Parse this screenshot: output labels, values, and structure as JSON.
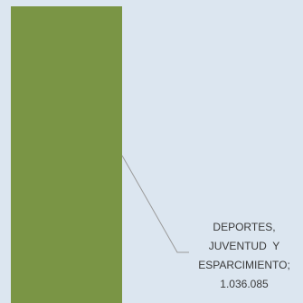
{
  "chart_data": {
    "type": "pie",
    "title": "",
    "slices": [
      {
        "label": "DEPORTES, JUVENTUD Y ESPARCIMIENTO",
        "value": 1036085,
        "value_text": "1.036.085",
        "color": "#7a9545"
      }
    ],
    "data_label": {
      "lines": [
        "DEPORTES,",
        "JUVENTUD  Y",
        "ESPARCIMIENTO;",
        "1.036.085"
      ]
    },
    "colors": {
      "background": "#dce6f0",
      "leader_line": "#9a9a9a",
      "label_text": "#3a3a3a"
    }
  }
}
